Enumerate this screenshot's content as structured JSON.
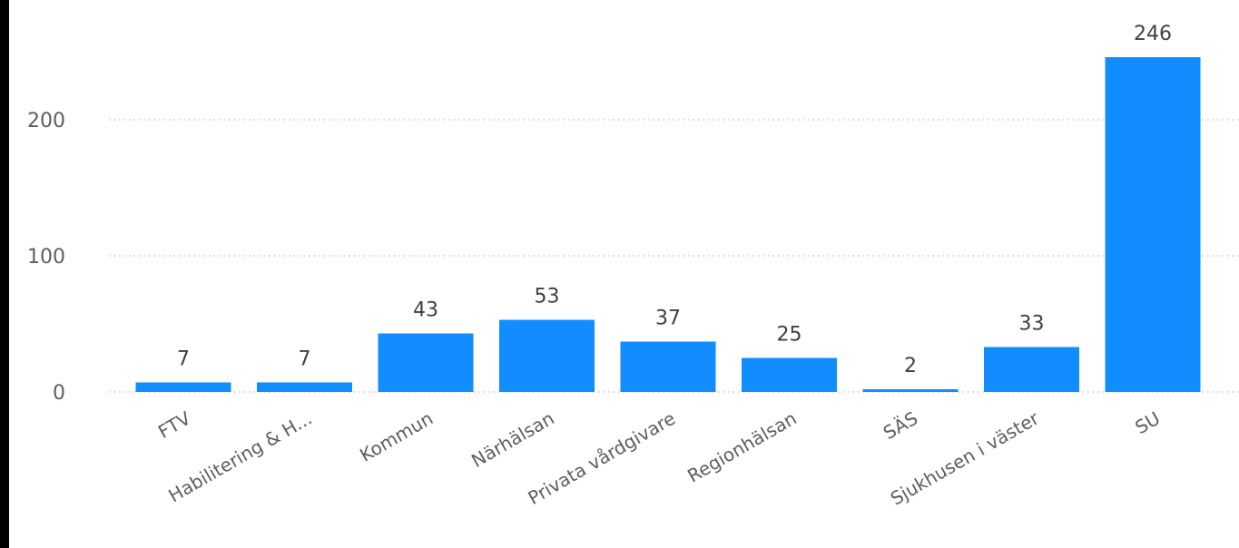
{
  "chart_data": {
    "type": "bar",
    "categories": [
      "FTV",
      "Habilitering & H...",
      "Kommun",
      "Närhälsan",
      "Privata vårdgivare",
      "Regionhälsan",
      "SÄS",
      "Sjukhusen i väster",
      "SU"
    ],
    "values": [
      7,
      7,
      43,
      53,
      37,
      25,
      2,
      33,
      246
    ],
    "data_labels": [
      "7",
      "7",
      "43",
      "53",
      "37",
      "25",
      "2",
      "33",
      "246"
    ],
    "yticks": [
      0,
      100,
      200
    ],
    "ytick_labels": [
      "0",
      "100",
      "200"
    ],
    "ylim": [
      0,
      250
    ],
    "grid": true,
    "bar_color": "#118dff",
    "title": "",
    "xlabel": "",
    "ylabel": ""
  }
}
